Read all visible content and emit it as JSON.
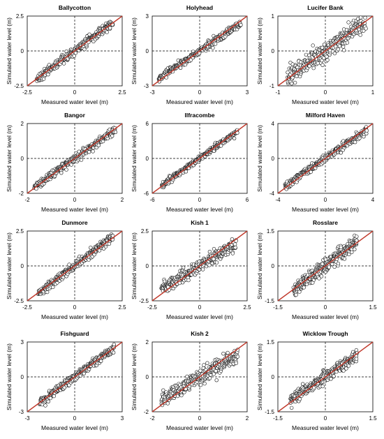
{
  "chart_data": [
    {
      "type": "scatter",
      "title": "Ballycotton",
      "xlabel": "Measured water level (m)",
      "ylabel": "Simulated water level (m)",
      "xlim": [
        -2.5,
        2.5
      ],
      "ylim": [
        -2.5,
        2.5
      ],
      "xticks": [
        "-2.5",
        "0",
        "2.5"
      ],
      "yticks": [
        "-2.5",
        "0",
        "2.5"
      ],
      "scatter_range": [
        -2.0,
        2.0
      ],
      "slope": 1.0,
      "spread": 0.15,
      "grid": false,
      "reference_line": "1:1"
    },
    {
      "type": "scatter",
      "title": "Holyhead",
      "xlabel": "Measured water level (m)",
      "ylabel": "Simulated water level (m)",
      "xlim": [
        -3,
        3
      ],
      "ylim": [
        -3,
        3
      ],
      "xticks": [
        "-3",
        "0",
        "3"
      ],
      "yticks": [
        "-3",
        "0",
        "3"
      ],
      "scatter_range": [
        -2.6,
        2.6
      ],
      "slope": 0.92,
      "spread": 0.15,
      "grid": false,
      "reference_line": "1:1"
    },
    {
      "type": "scatter",
      "title": "Lucifer Bank",
      "xlabel": "Measured water level (m)",
      "ylabel": "Simulated water level (m)",
      "xlim": [
        -1,
        1
      ],
      "ylim": [
        -1,
        1
      ],
      "xticks": [
        "-1",
        "0",
        "1"
      ],
      "yticks": [
        "-1",
        "0",
        "1"
      ],
      "scatter_range": [
        -0.8,
        0.85
      ],
      "slope": 0.95,
      "spread": 0.14,
      "grid": false,
      "reference_line": "1:1"
    },
    {
      "type": "scatter",
      "title": "Bangor",
      "xlabel": "Measured water level (m)",
      "ylabel": "Simulated water level (m)",
      "xlim": [
        -2,
        2
      ],
      "ylim": [
        -2,
        2
      ],
      "xticks": [
        "-2",
        "0",
        "2"
      ],
      "yticks": [
        "-2",
        "0",
        "2"
      ],
      "scatter_range": [
        -1.7,
        1.7
      ],
      "slope": 0.95,
      "spread": 0.11,
      "grid": false,
      "reference_line": "1:1"
    },
    {
      "type": "scatter",
      "title": "Ilfracombe",
      "xlabel": "Measured water level (m)",
      "ylabel": "Simulated water level (m)",
      "xlim": [
        -6,
        6
      ],
      "ylim": [
        -6,
        6
      ],
      "xticks": [
        "-6",
        "0",
        "6"
      ],
      "yticks": [
        "-6",
        "0",
        "6"
      ],
      "scatter_range": [
        -4.8,
        4.8
      ],
      "slope": 0.97,
      "spread": 0.25,
      "grid": false,
      "reference_line": "1:1"
    },
    {
      "type": "scatter",
      "title": "Milford Haven",
      "xlabel": "Measured water level (m)",
      "ylabel": "Simulated water level (m)",
      "xlim": [
        -4,
        4
      ],
      "ylim": [
        -4,
        4
      ],
      "xticks": [
        "-4",
        "0",
        "4"
      ],
      "yticks": [
        "-4",
        "0",
        "4"
      ],
      "scatter_range": [
        -3.4,
        3.5
      ],
      "slope": 0.93,
      "spread": 0.2,
      "grid": false,
      "reference_line": "1:1"
    },
    {
      "type": "scatter",
      "title": "Dunmore",
      "xlabel": "Measured water level (m)",
      "ylabel": "Simulated water level (m)",
      "xlim": [
        -2.5,
        2.5
      ],
      "ylim": [
        -2.5,
        2.5
      ],
      "xticks": [
        "-2.5",
        "0",
        "2.5"
      ],
      "yticks": [
        "-2.5",
        "0",
        "2.5"
      ],
      "scatter_range": [
        -1.9,
        2.0
      ],
      "slope": 1.05,
      "spread": 0.15,
      "grid": false,
      "reference_line": "1:1"
    },
    {
      "type": "scatter",
      "title": "Kish 1",
      "xlabel": "Measured water level (m)",
      "ylabel": "Simulated water level (m)",
      "xlim": [
        -2.5,
        2.5
      ],
      "ylim": [
        -2.5,
        2.5
      ],
      "xticks": [
        "-2.5",
        "0",
        "2.5"
      ],
      "yticks": [
        "-2.5",
        "0",
        "2.5"
      ],
      "scatter_range": [
        -2.0,
        1.9
      ],
      "slope": 0.82,
      "spread": 0.22,
      "grid": false,
      "reference_line": "1:1"
    },
    {
      "type": "scatter",
      "title": "Rosslare",
      "xlabel": "Measured water level (m)",
      "ylabel": "Simulated water level (m)",
      "xlim": [
        -1.5,
        1.5
      ],
      "ylim": [
        -1.5,
        1.5
      ],
      "xticks": [
        "-1.5",
        "0",
        "1.5"
      ],
      "yticks": [
        "-1.5",
        "0",
        "1.5"
      ],
      "scatter_range": [
        -1.0,
        1.0
      ],
      "slope": 1.05,
      "spread": 0.15,
      "grid": false,
      "reference_line": "1:1"
    },
    {
      "type": "scatter",
      "title": "Fishguard",
      "xlabel": "Measured water level (m)",
      "ylabel": "Simulated water level (m)",
      "xlim": [
        -3,
        3
      ],
      "ylim": [
        -3,
        3
      ],
      "xticks": [
        "-3",
        "0",
        "3"
      ],
      "yticks": [
        "-3",
        "0",
        "3"
      ],
      "scatter_range": [
        -2.2,
        2.5
      ],
      "slope": 1.0,
      "spread": 0.18,
      "grid": false,
      "reference_line": "1:1"
    },
    {
      "type": "scatter",
      "title": "Kish 2",
      "xlabel": "Measured water level (m)",
      "ylabel": "Simulated water level (m)",
      "xlim": [
        -2,
        2
      ],
      "ylim": [
        -2,
        2
      ],
      "xticks": [
        "-2",
        "0",
        "2"
      ],
      "yticks": [
        "-2",
        "0",
        "2"
      ],
      "scatter_range": [
        -1.6,
        1.6
      ],
      "slope": 0.78,
      "spread": 0.2,
      "grid": false,
      "reference_line": "1:1"
    },
    {
      "type": "scatter",
      "title": "Wicklow Trough",
      "xlabel": "Measured water level (m)",
      "ylabel": "Simulated water level (m)",
      "xlim": [
        -1.5,
        1.5
      ],
      "ylim": [
        -1.5,
        1.5
      ],
      "xticks": [
        "-1.5",
        "0",
        "1.5"
      ],
      "yticks": [
        "-1.5",
        "0",
        "1.5"
      ],
      "scatter_range": [
        -1.1,
        1.0
      ],
      "slope": 0.9,
      "spread": 0.12,
      "grid": false,
      "reference_line": "1:1"
    }
  ],
  "style": {
    "point_stroke": "#1a1a1a",
    "point_fill": "#ffffff",
    "line_color": "#c0392b",
    "frame_color": "#000000",
    "text_color": "#000000"
  }
}
